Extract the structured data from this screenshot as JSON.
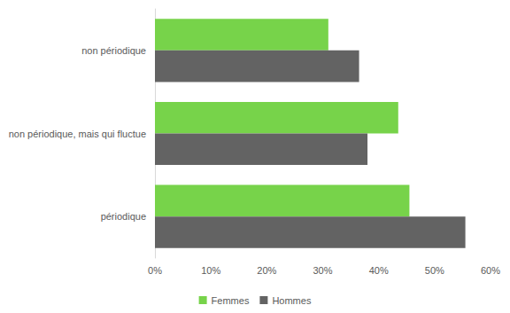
{
  "chart_data": {
    "type": "bar",
    "orientation": "horizontal",
    "categories": [
      "non périodique",
      "non périodique, mais qui fluctue",
      "périodique"
    ],
    "series": [
      {
        "name": "Femmes",
        "color": "#77d34a",
        "values": [
          31,
          43.5,
          45.5
        ]
      },
      {
        "name": "Hommes",
        "color": "#636363",
        "values": [
          36.5,
          38,
          55.5
        ]
      }
    ],
    "xlim": [
      0,
      60
    ],
    "xticks": [
      {
        "value": 0,
        "label": "0%"
      },
      {
        "value": 10,
        "label": "10%"
      },
      {
        "value": 20,
        "label": "20%"
      },
      {
        "value": 30,
        "label": "30%"
      },
      {
        "value": 40,
        "label": "40%"
      },
      {
        "value": 50,
        "label": "50%"
      },
      {
        "value": 60,
        "label": "60%"
      }
    ],
    "grid": false,
    "legend": "bottom"
  }
}
